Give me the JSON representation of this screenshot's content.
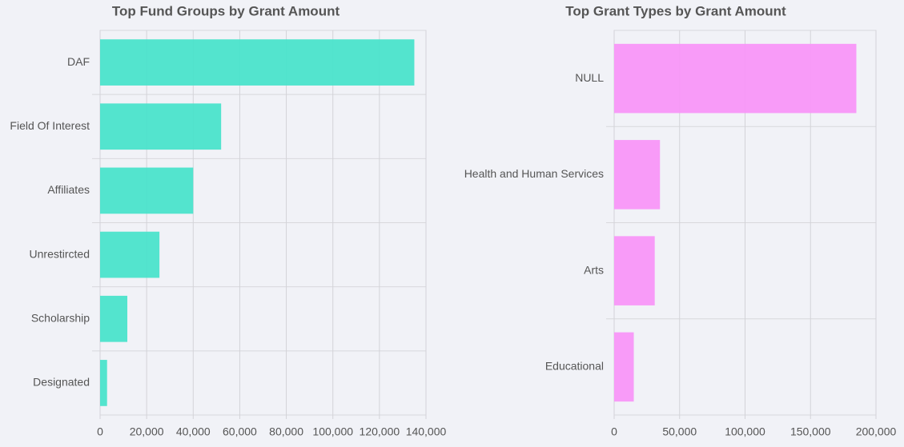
{
  "chart_data": [
    {
      "type": "bar",
      "title": "Top Fund Groups by Grant Amount",
      "categories": [
        "DAF",
        "Field Of Interest",
        "Affiliates",
        "Unrestircted",
        "Scholarship",
        "Designated"
      ],
      "values": [
        135000,
        52000,
        40000,
        25500,
        11700,
        3000
      ],
      "color": "#4ae3cb",
      "xlim": [
        0,
        140000
      ],
      "xticks": [
        0,
        {
          "value": 20000,
          "label": "20,000"
        },
        {
          "value": 40000,
          "label": "40,000"
        },
        {
          "value": 60000,
          "label": "60,000"
        },
        {
          "value": 80000,
          "label": "80,000"
        },
        {
          "value": 100000,
          "label": "100,000"
        },
        {
          "value": 120000,
          "label": "120,000"
        },
        {
          "value": 140000,
          "label": "140,000"
        }
      ],
      "grid": true
    },
    {
      "type": "bar",
      "title": "Top Grant Types by Grant Amount",
      "categories": [
        "NULL",
        "Health and Human Services",
        "Arts",
        "Educational"
      ],
      "values": [
        185000,
        35000,
        31000,
        15000
      ],
      "color": "#f896f8",
      "xlim": [
        0,
        200000
      ],
      "xticks": [
        0,
        {
          "value": 50000,
          "label": "50,000"
        },
        {
          "value": 100000,
          "label": "100,000"
        },
        {
          "value": 150000,
          "label": "150,000"
        },
        {
          "value": 200000,
          "label": "200,000"
        }
      ],
      "grid": true
    }
  ]
}
